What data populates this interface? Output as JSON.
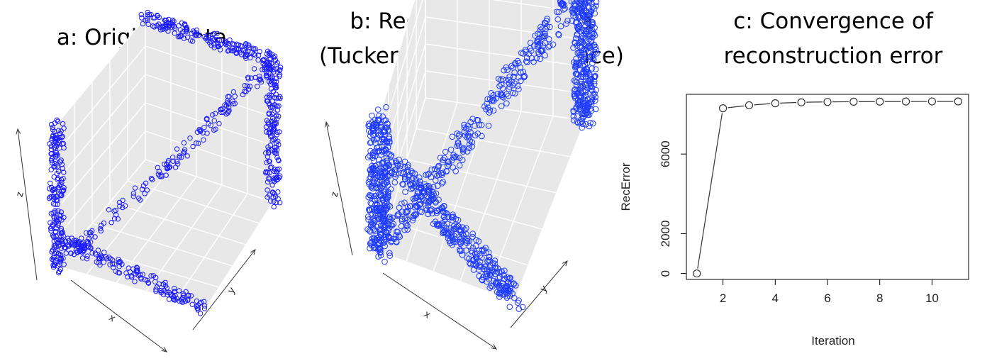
{
  "panels": {
    "a": {
      "title": "a: Original data",
      "xlabel": "x",
      "ylabel": "y",
      "zlabel": "z"
    },
    "b": {
      "title_line1": "b: Reconstructed data",
      "title_line2": "(Tucker with KL-divergence)",
      "xlabel": "x",
      "ylabel": "y",
      "zlabel": "z"
    },
    "c": {
      "title_line1": "c: Convergence of",
      "title_line2": "reconstruction error"
    }
  },
  "colors": {
    "points": "#1a1aff",
    "points_b": "#1f3cff",
    "panel_bg": "#e8e8e8",
    "grid": "#ffffff",
    "line": "#333333"
  },
  "chart_data": [
    {
      "type": "scatter",
      "panel": "a",
      "projection": "3d",
      "xlabel": "x",
      "ylabel": "y",
      "zlabel": "z",
      "series": [
        {
          "segments": [
            {
              "from": [
                0,
                0,
                1
              ],
              "to": [
                0,
                0,
                0
              ]
            },
            {
              "from": [
                0,
                0,
                0
              ],
              "to": [
                1,
                1,
                1
              ]
            },
            {
              "from": [
                1,
                1,
                1
              ],
              "to": [
                1,
                1,
                0
              ]
            },
            {
              "from": [
                0,
                1,
                1
              ],
              "to": [
                1,
                1,
                1
              ]
            },
            {
              "from": [
                0,
                0,
                0.2
              ],
              "to": [
                1,
                0,
                0
              ]
            }
          ]
        }
      ]
    },
    {
      "type": "scatter",
      "panel": "b",
      "projection": "3d",
      "xlabel": "x",
      "ylabel": "y",
      "zlabel": "z",
      "series": [
        {
          "segments": [
            {
              "from": [
                0,
                0,
                1
              ],
              "to": [
                0,
                0,
                0
              ]
            },
            {
              "from": [
                0,
                0,
                0
              ],
              "to": [
                1,
                1,
                1
              ]
            },
            {
              "from": [
                1,
                1,
                1
              ],
              "to": [
                1,
                1,
                0
              ]
            },
            {
              "from": [
                0,
                1,
                1
              ],
              "to": [
                1,
                1,
                1
              ]
            },
            {
              "from": [
                0,
                0.3,
                0.3
              ],
              "to": [
                1,
                0,
                0
              ]
            }
          ]
        }
      ]
    },
    {
      "type": "line",
      "panel": "c",
      "xlabel": "Iteration",
      "ylabel": "RecError",
      "x": [
        1,
        2,
        3,
        4,
        5,
        6,
        7,
        8,
        9,
        10,
        11
      ],
      "y": [
        0,
        8300,
        8450,
        8550,
        8600,
        8620,
        8630,
        8635,
        8640,
        8642,
        8644
      ],
      "xticks": [
        2,
        4,
        6,
        8,
        10
      ],
      "yticks": [
        0,
        2000,
        6000
      ],
      "xlim": [
        0.6,
        11.4
      ],
      "ylim": [
        -300,
        9000
      ],
      "grid": false
    }
  ]
}
